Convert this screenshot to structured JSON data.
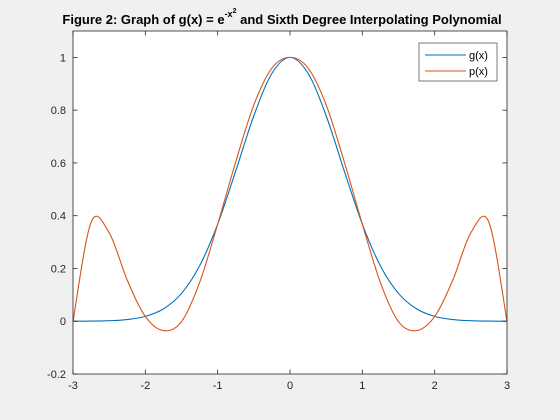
{
  "chart_data": {
    "type": "line",
    "title": {
      "prefix": "Figure 2: Graph of g(x) = e",
      "superscript": "-x",
      "superscript2": "2",
      "suffix": " and Sixth Degree Interpolating Polynomial"
    },
    "xlabel": "",
    "ylabel": "",
    "xlim": [
      -3,
      3
    ],
    "ylim": [
      -0.2,
      1.1
    ],
    "xticks": [
      -3,
      -2,
      -1,
      0,
      1,
      2,
      3
    ],
    "xtick_labels": [
      "-3",
      "-2",
      "-1",
      "0",
      "1",
      "2",
      "3"
    ],
    "yticks": [
      -0.2,
      0,
      0.2,
      0.4,
      0.6,
      0.8,
      1
    ],
    "ytick_labels": [
      "-0.2",
      "0",
      "0.2",
      "0.4",
      "0.6",
      "0.8",
      "1"
    ],
    "grid": false,
    "legend_position": "top-right",
    "series": [
      {
        "name": "g(x)",
        "color": "#0072bd",
        "x": [
          -3,
          -2.75,
          -2.5,
          -2.25,
          -2,
          -1.75,
          -1.5,
          -1.25,
          -1,
          -0.75,
          -0.5,
          -0.25,
          0,
          0.25,
          0.5,
          0.75,
          1,
          1.25,
          1.5,
          1.75,
          2,
          2.25,
          2.5,
          2.75,
          3
        ],
        "y": [
          0.0001,
          0.0005,
          0.0019,
          0.0063,
          0.0183,
          0.0468,
          0.1054,
          0.2096,
          0.3679,
          0.5698,
          0.7788,
          0.9394,
          1,
          0.9394,
          0.7788,
          0.5698,
          0.3679,
          0.2096,
          0.1054,
          0.0468,
          0.0183,
          0.0063,
          0.0019,
          0.0005,
          0.0001
        ]
      },
      {
        "name": "p(x)",
        "color": "#d95319",
        "x": [
          -3,
          -2.75,
          -2.5,
          -2.25,
          -2,
          -1.75,
          -1.5,
          -1.25,
          -1,
          -0.75,
          -0.5,
          -0.25,
          0,
          0.25,
          0.5,
          0.75,
          1,
          1.25,
          1.5,
          1.75,
          2,
          2.25,
          2.5,
          2.75,
          3
        ],
        "y": [
          0.0001,
          0.3752,
          0.3352,
          0.1557,
          0.0183,
          -0.0355,
          -0.0017,
          0.1464,
          0.3679,
          0.6045,
          0.8198,
          0.9596,
          1,
          0.9596,
          0.8198,
          0.6045,
          0.3679,
          0.1464,
          -0.0017,
          -0.0355,
          0.0183,
          0.1557,
          0.3352,
          0.3752,
          0.0001
        ]
      }
    ]
  }
}
